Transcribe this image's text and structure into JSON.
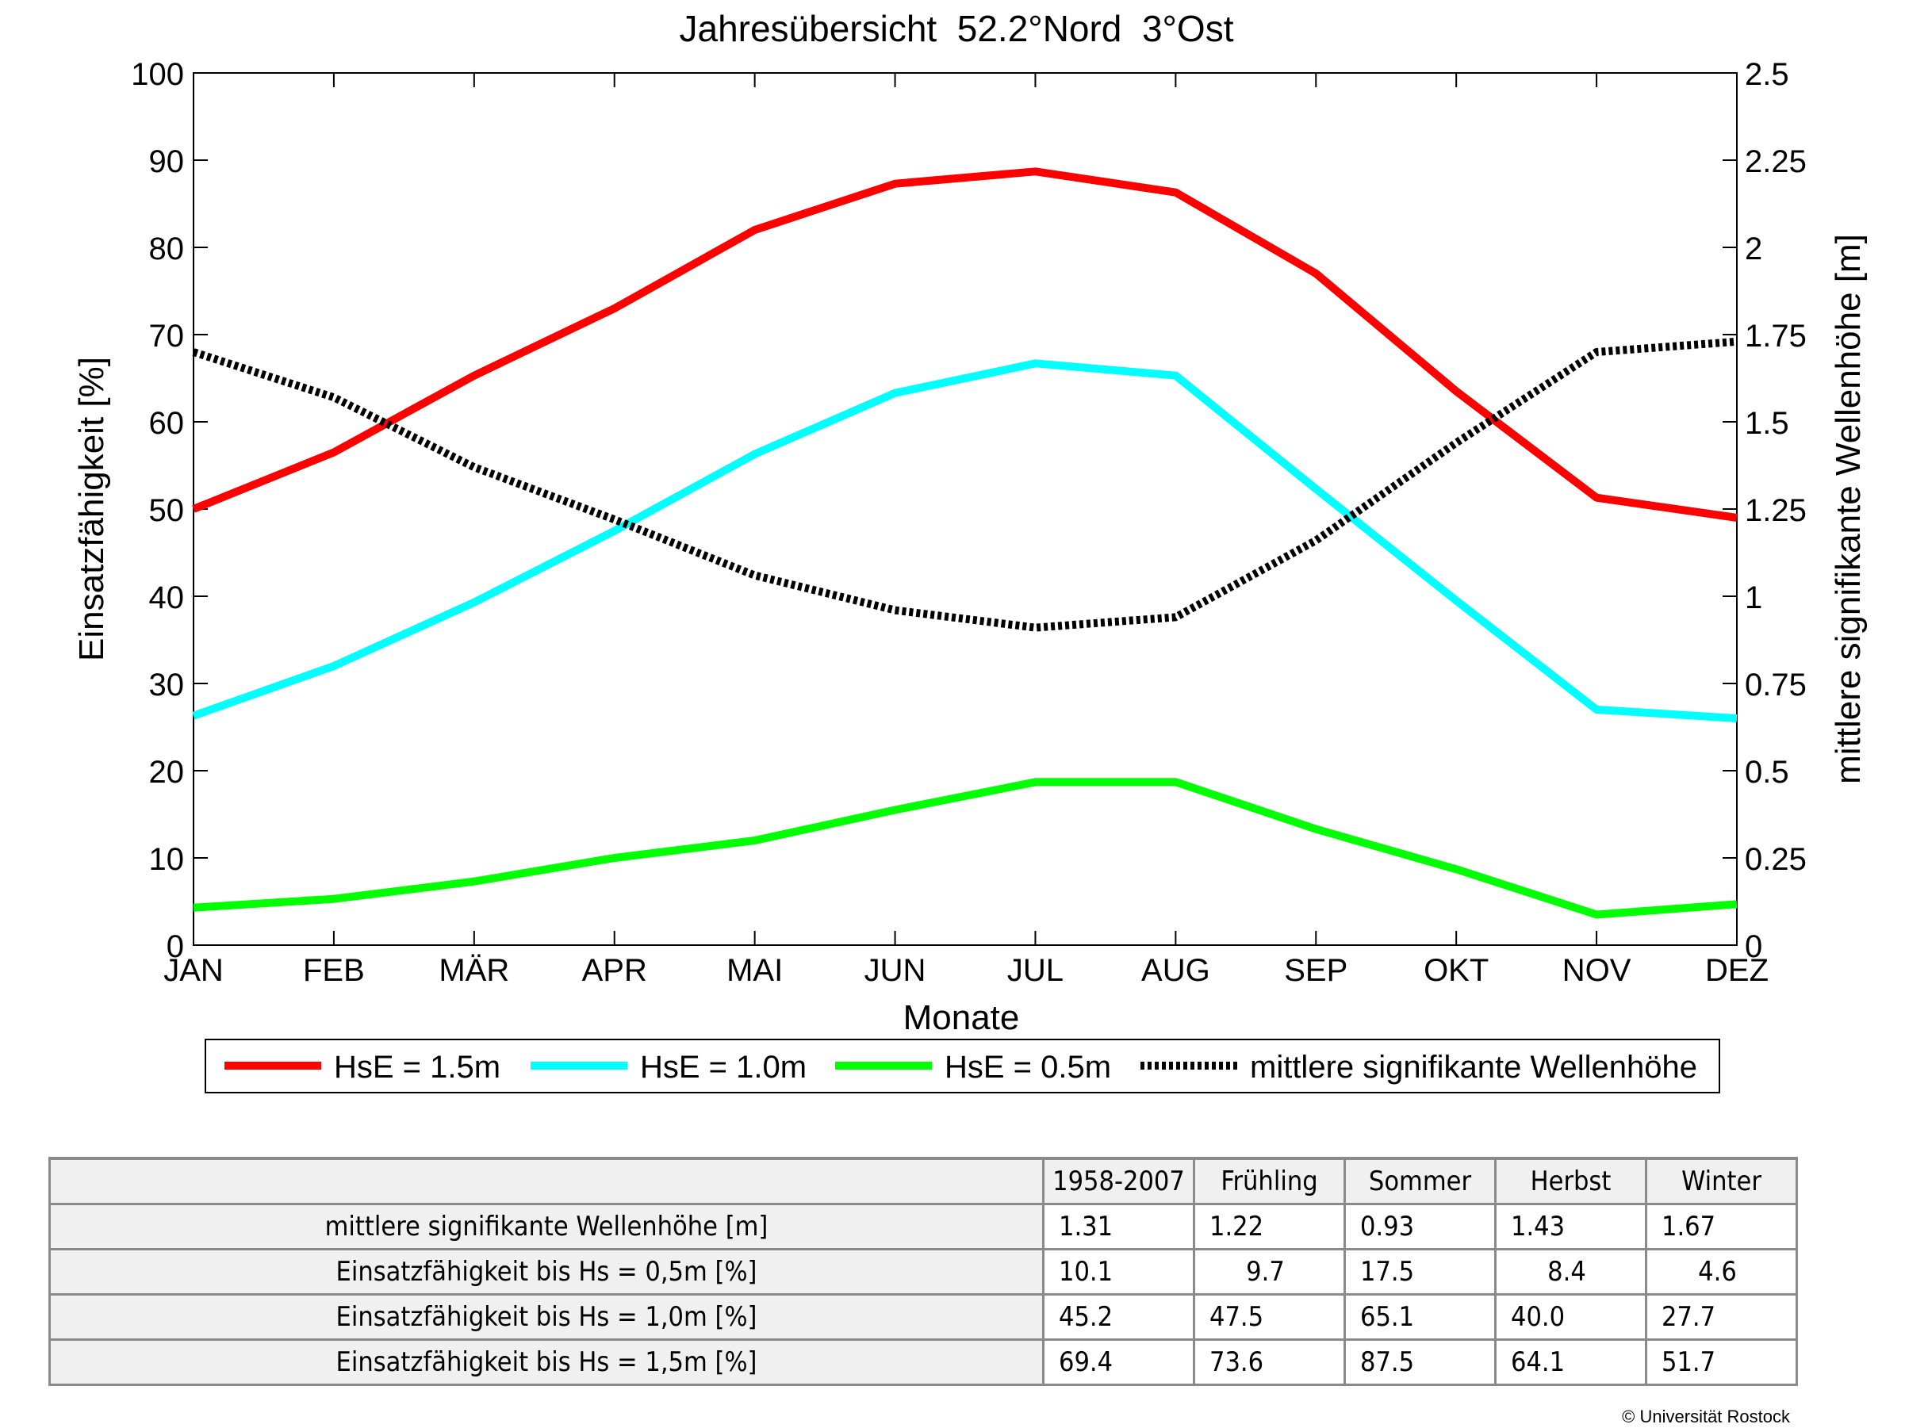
{
  "chart_data": {
    "type": "line",
    "title": "Jahresübersicht  52.2°Nord  3°Ost",
    "xlabel": "Monate",
    "ylabel_left": "Einsatzfähigkeit [%]",
    "ylabel_right": "mittlere signifikante Wellenhöhe [m]",
    "categories": [
      "JAN",
      "FEB",
      "MÄR",
      "APR",
      "MAI",
      "JUN",
      "JUL",
      "AUG",
      "SEP",
      "OKT",
      "NOV",
      "DEZ"
    ],
    "ylim_left": [
      0,
      100
    ],
    "yticks_left": [
      0,
      10,
      20,
      30,
      40,
      50,
      60,
      70,
      80,
      90,
      100
    ],
    "ylim_right": [
      0,
      2.5
    ],
    "yticks_right": [
      "0",
      "0.25",
      "0.5",
      "0.75",
      "1",
      "1.25",
      "1.5",
      "1.75",
      "2",
      "2.25",
      "2.5"
    ],
    "series": [
      {
        "name": "HsE = 1.5m",
        "axis": "left",
        "color": "#ff0000",
        "style": "solid",
        "values": [
          50.0,
          56.5,
          65.3,
          73.0,
          82.0,
          87.3,
          88.7,
          86.3,
          77.0,
          63.5,
          51.3,
          49.0
        ]
      },
      {
        "name": "HsE = 1.0m",
        "axis": "left",
        "color": "#00ffff",
        "style": "solid",
        "values": [
          26.3,
          32.0,
          39.3,
          47.5,
          56.3,
          63.3,
          66.7,
          65.3,
          52.3,
          39.5,
          27.0,
          26.0
        ]
      },
      {
        "name": "HsE = 0.5m",
        "axis": "left",
        "color": "#00ff00",
        "style": "solid",
        "values": [
          4.3,
          5.3,
          7.3,
          10.0,
          12.0,
          15.5,
          18.7,
          18.7,
          13.3,
          8.7,
          3.5,
          4.7
        ]
      },
      {
        "name": "mittlere signifikante Wellenhöhe",
        "axis": "right",
        "color": "#000000",
        "style": "dotted",
        "values": [
          1.7,
          1.57,
          1.37,
          1.22,
          1.06,
          0.96,
          0.91,
          0.94,
          1.16,
          1.44,
          1.7,
          1.73
        ]
      }
    ],
    "legend_position": "bottom",
    "grid": false
  },
  "table": {
    "headers": [
      "1958-2007",
      "Frühling",
      "Sommer",
      "Herbst",
      "Winter"
    ],
    "rows": [
      {
        "label": "mittlere signifikante Wellenhöhe [m]",
        "values": [
          "1.31",
          "1.22",
          "0.93",
          "1.43",
          "1.67"
        ]
      },
      {
        "label": "Einsatzfähigkeit bis Hs = 0,5m [%]",
        "values": [
          "10.1",
          "9.7",
          "17.5",
          "8.4",
          "4.6"
        ]
      },
      {
        "label": "Einsatzfähigkeit bis Hs = 1,0m [%]",
        "values": [
          "45.2",
          "47.5",
          "65.1",
          "40.0",
          "27.7"
        ]
      },
      {
        "label": "Einsatzfähigkeit bis Hs = 1,5m [%]",
        "values": [
          "69.4",
          "73.6",
          "87.5",
          "64.1",
          "51.7"
        ]
      }
    ]
  },
  "copyright": "© Universität Rostock"
}
